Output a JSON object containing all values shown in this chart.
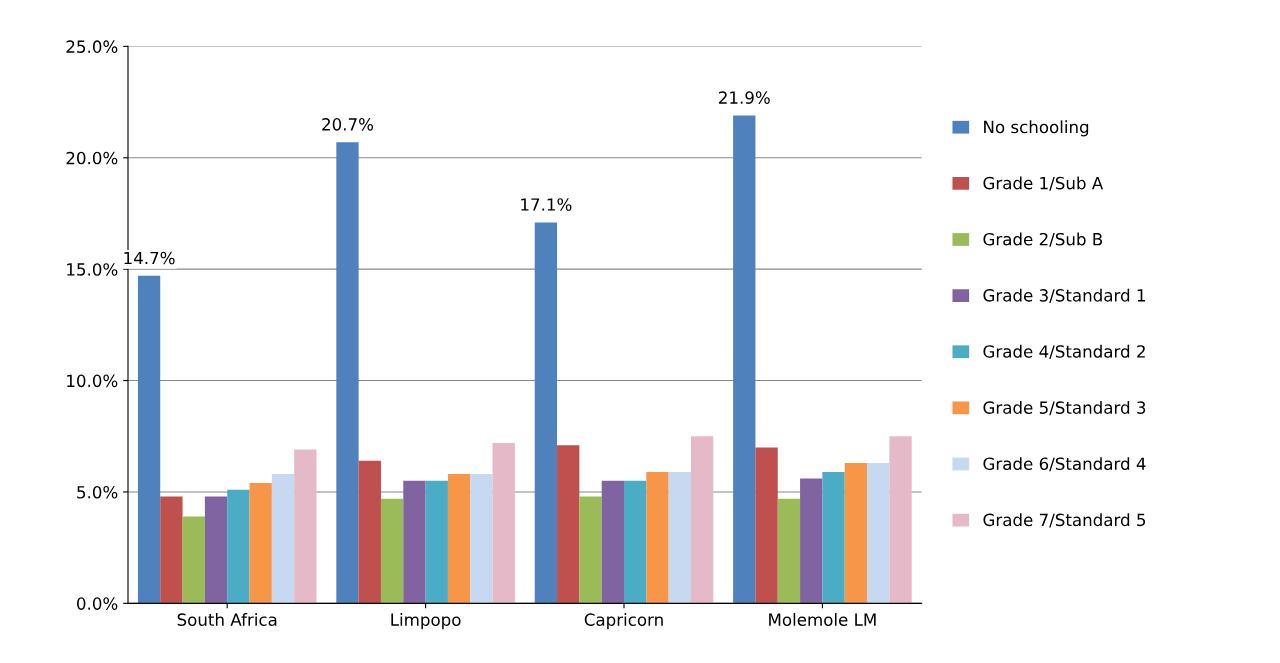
{
  "chart_data": {
    "type": "bar",
    "categories": [
      "South Africa",
      "Limpopo",
      "Capricorn",
      "Molemole LM"
    ],
    "series": [
      {
        "name": "No schooling",
        "color": "#4f81bd",
        "values": [
          14.7,
          20.7,
          17.1,
          21.9
        ],
        "value_labels": [
          "14.7%",
          "20.7%",
          "17.1%",
          "21.9%"
        ]
      },
      {
        "name": "Grade 1/Sub A",
        "color": "#c0504d",
        "values": [
          4.8,
          6.4,
          7.1,
          7.0
        ]
      },
      {
        "name": "Grade 2/Sub B",
        "color": "#9bbb59",
        "values": [
          3.9,
          4.7,
          4.8,
          4.7
        ]
      },
      {
        "name": "Grade 3/Standard 1",
        "color": "#8064a2",
        "values": [
          4.8,
          5.5,
          5.5,
          5.6
        ]
      },
      {
        "name": "Grade 4/Standard 2",
        "color": "#4bacc6",
        "values": [
          5.1,
          5.5,
          5.5,
          5.9
        ]
      },
      {
        "name": "Grade 5/Standard 3",
        "color": "#f79646",
        "values": [
          5.4,
          5.8,
          5.9,
          6.3
        ]
      },
      {
        "name": "Grade 6/Standard 4",
        "color": "#c6d9f1",
        "values": [
          5.8,
          5.8,
          5.9,
          6.3
        ]
      },
      {
        "name": "Grade 7/Standard 5",
        "color": "#e6b9c8",
        "values": [
          6.9,
          7.2,
          7.5,
          7.5
        ]
      }
    ],
    "ylim": [
      0,
      25
    ],
    "yticks": [
      {
        "value": 0,
        "label": "0.0%"
      },
      {
        "value": 5,
        "label": "5.0%"
      },
      {
        "value": 10,
        "label": "10.0%"
      },
      {
        "value": 15,
        "label": "15.0%"
      },
      {
        "value": 20,
        "label": "20.0%"
      },
      {
        "value": 25,
        "label": "25.0%"
      }
    ],
    "grid": "y",
    "legend": "right"
  }
}
